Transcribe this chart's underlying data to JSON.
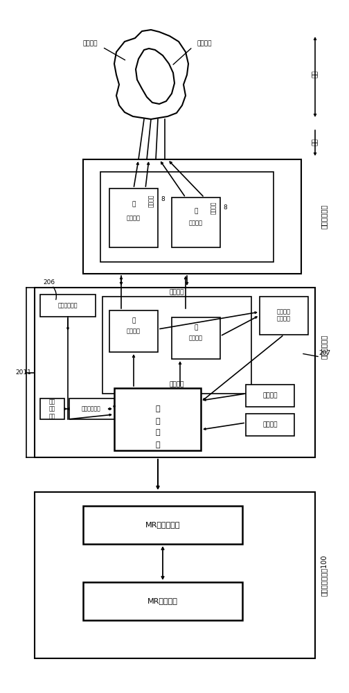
{
  "bg_color": "#ffffff",
  "line_color": "#000000",
  "labels": {
    "normal_tissue": "正常组织",
    "lesion_tissue": "病灶组织",
    "proximal": "近端",
    "distal": "远端",
    "fiber_guide_unit": "光纤导管单元",
    "fiber_pipe_1": "一\n光纤导管",
    "fiber_pipe_2": "二\n光纤导管",
    "temp_fiber_1": "测温光纤",
    "temp_fiber_2": "测温光纤",
    "laser_ablation_unit": "激光消融单元",
    "laser_module": "激光模块",
    "laser_device_1": "一\n激光装置",
    "laser_device_2": "二\n激光装置",
    "fiber_temp_module": "光纤测温模块",
    "effect_eval_module": "效果评估\n反馈模块",
    "controller": "制\n机\n控\n主",
    "temp_calib_module": "温度校正模块",
    "hmi_module": "人机\n交互\n模块",
    "power_module": "电源模块",
    "key_switch": "键钮开关",
    "mri_guidance_unit": "磁共振引导单元100",
    "mri_control_center": "MR－控制中心",
    "mri_scanner": "MR－扫描仪",
    "label_206": "206",
    "label_207": "207",
    "label_2011": "2011",
    "label_8": "8"
  }
}
